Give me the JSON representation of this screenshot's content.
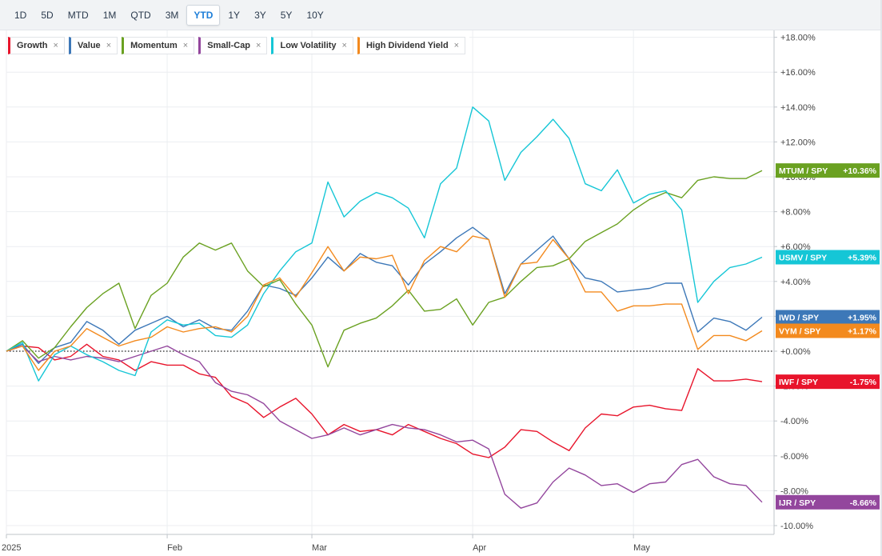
{
  "toolbar": {
    "ranges": [
      "1D",
      "5D",
      "MTD",
      "1M",
      "QTD",
      "3M",
      "YTD",
      "1Y",
      "3Y",
      "5Y",
      "10Y"
    ],
    "active": "YTD"
  },
  "legend": [
    {
      "label": "Growth",
      "color": "#e8142b",
      "close": "×"
    },
    {
      "label": "Value",
      "color": "#3d78b8",
      "close": "×"
    },
    {
      "label": "Momentum",
      "color": "#6aa121",
      "close": "×"
    },
    {
      "label": "Small-Cap",
      "color": "#93469d",
      "close": "×"
    },
    {
      "label": "Low Volatility",
      "color": "#15c6d6",
      "close": "×"
    },
    {
      "label": "High Dividend Yield",
      "color": "#f38a1e",
      "close": "×"
    }
  ],
  "chart_data": {
    "type": "line",
    "ylim": [
      -10.5,
      18.5
    ],
    "y_ticks": [
      18,
      16,
      14,
      12,
      10,
      8,
      6,
      4,
      2,
      0,
      -2,
      -4,
      -6,
      -8,
      -10
    ],
    "y_tick_labels": [
      "+18.00%",
      "+16.00%",
      "+14.00%",
      "+12.00%",
      "+10.00%",
      "+8.00%",
      "+6.00%",
      "+4.00%",
      "+2.00%",
      "+0.00%",
      "-2.00%",
      "-4.00%",
      "-6.00%",
      "-8.00%",
      "-10.00%"
    ],
    "x_ticks": [
      {
        "label": "2025",
        "x": 0
      },
      {
        "label": "Feb",
        "x": 20
      },
      {
        "label": "Mar",
        "x": 38
      },
      {
        "label": "Apr",
        "x": 58
      },
      {
        "label": "May",
        "x": 78
      }
    ],
    "x_max": 94,
    "zero_line": 0,
    "series": [
      {
        "name": "Growth",
        "color": "#e8142b",
        "x": [
          0,
          2,
          4,
          6,
          8,
          10,
          12,
          14,
          16,
          18,
          20,
          22,
          24,
          26,
          28,
          30,
          32,
          34,
          36,
          38,
          40,
          42,
          44,
          46,
          48,
          50,
          52,
          54,
          56,
          58,
          60,
          62,
          64,
          66,
          68,
          70,
          72,
          74,
          76,
          78,
          80,
          82,
          84,
          86,
          88,
          90,
          92,
          94
        ],
        "values": [
          0,
          0.3,
          0.2,
          -0.5,
          -0.3,
          0.4,
          -0.3,
          -0.5,
          -1.1,
          -0.6,
          -0.8,
          -0.8,
          -1.3,
          -1.5,
          -2.6,
          -3,
          -3.8,
          -3.2,
          -2.7,
          -3.6,
          -4.8,
          -4.2,
          -4.6,
          -4.5,
          -4.8,
          -4.2,
          -4.6,
          -5,
          -5.3,
          -5.9,
          -6.1,
          -5.5,
          -4.5,
          -4.6,
          -5.2,
          -5.7,
          -4.4,
          -3.6,
          -3.7,
          -3.2,
          -3.1,
          -3.3,
          -3.4,
          -1,
          -1.7,
          -1.7,
          -1.6,
          -1.75
        ]
      },
      {
        "name": "Value",
        "color": "#3d78b8",
        "x": [
          0,
          2,
          4,
          6,
          8,
          10,
          12,
          14,
          16,
          18,
          20,
          22,
          24,
          26,
          28,
          30,
          32,
          34,
          36,
          38,
          40,
          42,
          44,
          46,
          48,
          50,
          52,
          54,
          56,
          58,
          60,
          62,
          64,
          66,
          68,
          70,
          72,
          74,
          76,
          78,
          80,
          82,
          84,
          86,
          88,
          90,
          92,
          94
        ],
        "values": [
          0,
          0.4,
          -0.7,
          0.2,
          0.5,
          1.7,
          1.2,
          0.4,
          1.2,
          1.6,
          2,
          1.4,
          1.8,
          1.3,
          1.2,
          2.3,
          3.8,
          3.6,
          3.2,
          4.2,
          5.4,
          4.6,
          5.6,
          5.1,
          4.9,
          3.8,
          5,
          5.7,
          6.5,
          7.1,
          6.4,
          3.3,
          5,
          5.8,
          6.6,
          5.3,
          4.2,
          4,
          3.4,
          3.5,
          3.6,
          3.9,
          3.9,
          1.1,
          1.9,
          1.7,
          1.2,
          1.95
        ]
      },
      {
        "name": "Momentum",
        "color": "#6aa121",
        "x": [
          0,
          2,
          4,
          6,
          8,
          10,
          12,
          14,
          16,
          18,
          20,
          22,
          24,
          26,
          28,
          30,
          32,
          34,
          36,
          38,
          40,
          42,
          44,
          46,
          48,
          50,
          52,
          54,
          56,
          58,
          60,
          62,
          64,
          66,
          68,
          70,
          72,
          74,
          76,
          78,
          80,
          82,
          84,
          86,
          88,
          90,
          92,
          94
        ],
        "values": [
          0,
          0.6,
          -0.4,
          0.2,
          1.4,
          2.5,
          3.3,
          3.9,
          1.3,
          3.2,
          3.9,
          5.4,
          6.2,
          5.8,
          6.2,
          4.6,
          3.7,
          4.1,
          2.7,
          1.5,
          -0.9,
          1.2,
          1.6,
          1.9,
          2.6,
          3.5,
          2.3,
          2.4,
          3,
          1.5,
          2.8,
          3.1,
          4,
          4.8,
          4.9,
          5.3,
          6.3,
          6.8,
          7.3,
          8.1,
          8.7,
          9.1,
          8.8,
          9.8,
          10,
          9.9,
          9.9,
          10.36
        ]
      },
      {
        "name": "Small-Cap",
        "color": "#93469d",
        "x": [
          0,
          2,
          4,
          6,
          8,
          10,
          12,
          14,
          16,
          18,
          20,
          22,
          24,
          26,
          28,
          30,
          32,
          34,
          36,
          38,
          40,
          42,
          44,
          46,
          48,
          50,
          52,
          54,
          56,
          58,
          60,
          62,
          64,
          66,
          68,
          70,
          72,
          74,
          76,
          78,
          80,
          82,
          84,
          86,
          88,
          90,
          92,
          94
        ],
        "values": [
          0,
          0.3,
          -0.6,
          -0.3,
          -0.5,
          -0.3,
          -0.4,
          -0.6,
          -0.3,
          0,
          0.3,
          -0.2,
          -0.6,
          -1.8,
          -2.3,
          -2.5,
          -3,
          -4,
          -4.5,
          -5,
          -4.8,
          -4.4,
          -4.8,
          -4.5,
          -4.2,
          -4.4,
          -4.5,
          -4.8,
          -5.2,
          -5.1,
          -5.6,
          -8.2,
          -9,
          -8.7,
          -7.5,
          -6.7,
          -7.1,
          -7.7,
          -7.6,
          -8.1,
          -7.6,
          -7.5,
          -6.5,
          -6.2,
          -7.2,
          -7.6,
          -7.7,
          -8.66
        ]
      },
      {
        "name": "Low Volatility",
        "color": "#15c6d6",
        "x": [
          0,
          2,
          4,
          6,
          8,
          10,
          12,
          14,
          16,
          18,
          20,
          22,
          24,
          26,
          28,
          30,
          32,
          34,
          36,
          38,
          40,
          42,
          44,
          46,
          48,
          50,
          52,
          54,
          56,
          58,
          60,
          62,
          64,
          66,
          68,
          70,
          72,
          74,
          76,
          78,
          80,
          82,
          84,
          86,
          88,
          90,
          92,
          94
        ],
        "values": [
          0,
          0.5,
          -1.7,
          -0.2,
          0.3,
          -0.2,
          -0.6,
          -1.1,
          -1.4,
          1.1,
          1.8,
          1.5,
          1.6,
          0.9,
          0.8,
          1.5,
          3.3,
          4.6,
          5.7,
          6.2,
          9.7,
          7.7,
          8.6,
          9.1,
          8.8,
          8.2,
          6.5,
          9.6,
          10.5,
          14,
          13.2,
          9.8,
          11.4,
          12.3,
          13.3,
          12.2,
          9.6,
          9.2,
          10.4,
          8.5,
          9,
          9.2,
          8.1,
          2.8,
          4,
          4.8,
          5,
          5.39
        ]
      },
      {
        "name": "High Dividend Yield",
        "color": "#f38a1e",
        "x": [
          0,
          2,
          4,
          6,
          8,
          10,
          12,
          14,
          16,
          18,
          20,
          22,
          24,
          26,
          28,
          30,
          32,
          34,
          36,
          38,
          40,
          42,
          44,
          46,
          48,
          50,
          52,
          54,
          56,
          58,
          60,
          62,
          64,
          66,
          68,
          70,
          72,
          74,
          76,
          78,
          80,
          82,
          84,
          86,
          88,
          90,
          92,
          94
        ],
        "values": [
          0,
          0.3,
          -1.1,
          0,
          0.3,
          1.3,
          0.8,
          0.3,
          0.6,
          0.8,
          1.4,
          1.1,
          1.3,
          1.4,
          1.1,
          2,
          3.8,
          4.2,
          3.1,
          4.5,
          6,
          4.6,
          5.4,
          5.3,
          5.5,
          3.3,
          5.2,
          6,
          5.7,
          6.6,
          6.4,
          3.1,
          5,
          5.1,
          6.4,
          5.3,
          3.4,
          3.4,
          2.3,
          2.6,
          2.6,
          2.7,
          2.7,
          0.1,
          0.9,
          0.9,
          0.6,
          1.17
        ]
      }
    ],
    "end_labels": [
      {
        "ticker": "MTUM / SPY",
        "value": "+10.36%",
        "color": "#6aa121",
        "y": 10.36
      },
      {
        "ticker": "USMV / SPY",
        "value": "+5.39%",
        "color": "#15c6d6",
        "y": 5.39
      },
      {
        "ticker": "IWD / SPY",
        "value": "+1.95%",
        "color": "#3d78b8",
        "y": 1.95
      },
      {
        "ticker": "VYM / SPY",
        "value": "+1.17%",
        "color": "#f38a1e",
        "y": 1.17
      },
      {
        "ticker": "IWF / SPY",
        "value": "-1.75%",
        "color": "#e8142b",
        "y": -1.75
      },
      {
        "ticker": "IJR / SPY",
        "value": "-8.66%",
        "color": "#93469d",
        "y": -8.66
      }
    ]
  }
}
